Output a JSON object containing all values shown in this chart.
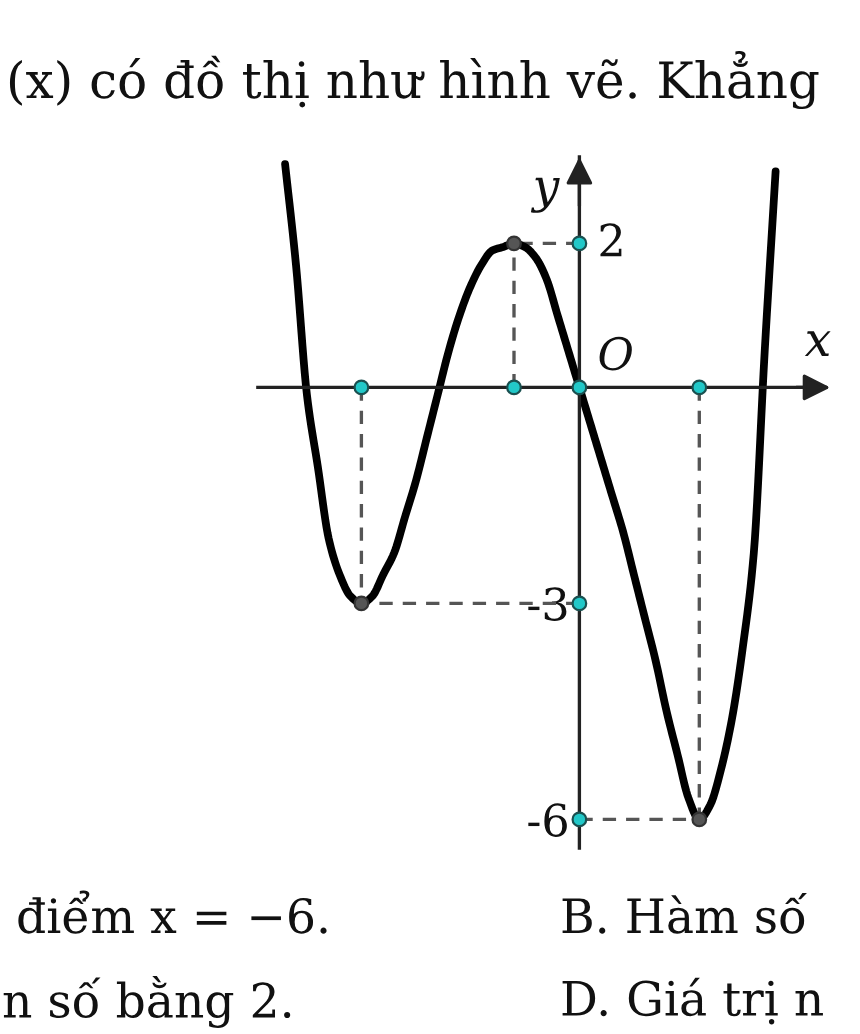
{
  "chart_data": {
    "type": "line",
    "title": "(x) có đồ thị như hình vẽ. Khẳng",
    "xlabel": "x",
    "ylabel": "y",
    "annotations": [
      "2",
      "O",
      "điểm x = −6.",
      "B. Hàm số",
      "n số bằng 2.",
      "D. Giá trị n"
    ],
    "categories": [
      null,
      null,
      null,
      null,
      null,
      null,
      null,
      null,
      null,
      null,
      null,
      null,
      null,
      null,
      null,
      null,
      null,
      null,
      null,
      null,
      null,
      null,
      null,
      null,
      null,
      null,
      null,
      null,
      null,
      null,
      null,
      null,
      null,
      null,
      null,
      null,
      null,
      null,
      null,
      null,
      null,
      null,
      null,
      null,
      null,
      null
    ],
    "series": [
      {
        "color": "#000000",
        "values": [
          3.1,
          1.7,
          -0.1,
          -1.1,
          -2.1,
          -2.6,
          -2.9,
          -3,
          -2.9,
          -2.6,
          -2.3,
          -1.8,
          -1.3,
          -0.7,
          -0.1,
          0.5,
          1.0,
          1.4,
          1.7,
          1.9,
          1.95,
          2,
          1.95,
          1.8,
          1.5,
          1.0,
          0.5,
          0,
          -0.5,
          -1.0,
          -1.5,
          -2.0,
          -2.6,
          -3.2,
          -3.8,
          -4.5,
          -5.1,
          -5.7,
          -6,
          -5.8,
          -5.3,
          -4.6,
          -3.6,
          -2.3,
          0.5,
          3.0
        ]
      },
      {
        "type": "lollipop",
        "color": "#555555",
        "line_style": "dashed",
        "marker": "circle",
        "values": [
          null,
          null,
          null,
          null,
          null,
          null,
          null,
          -3,
          null,
          null,
          null,
          null,
          null,
          null,
          null,
          null,
          null,
          null,
          null,
          null,
          null,
          2,
          null,
          null,
          null,
          null,
          null,
          null,
          null,
          null,
          null,
          null,
          null,
          null,
          null,
          null,
          null,
          null,
          -6,
          null,
          null,
          null,
          null,
          null,
          null,
          null
        ]
      },
      {
        "type": "scatter",
        "color": "#22c8c8",
        "marker": "circle",
        "values": [
          null,
          null,
          null,
          null,
          null,
          null,
          null,
          0,
          null,
          null,
          null,
          null,
          null,
          null,
          null,
          null,
          null,
          null,
          null,
          null,
          null,
          0,
          null,
          null,
          null,
          null,
          null,
          0,
          null,
          null,
          null,
          null,
          null,
          null,
          null,
          null,
          null,
          null,
          0,
          null,
          null,
          null,
          null,
          null,
          null,
          null
        ]
      },
      {
        "type": "scatter",
        "color": "#22c8c8",
        "marker": "circle",
        "values": [
          null,
          null,
          null,
          null,
          null,
          null,
          null,
          null,
          null,
          null,
          null,
          null,
          null,
          null,
          null,
          null,
          null,
          null,
          null,
          null,
          null,
          null,
          null,
          null,
          null,
          null,
          null,
          2,
          null,
          null,
          null,
          null,
          null,
          null,
          null,
          null,
          null,
          null,
          null,
          null,
          null,
          null,
          null,
          null,
          null,
          null
        ]
      },
      {
        "type": "scatter",
        "color": "#22c8c8",
        "marker": "circle",
        "values": [
          null,
          null,
          null,
          null,
          null,
          null,
          null,
          null,
          null,
          null,
          null,
          null,
          null,
          null,
          null,
          null,
          null,
          null,
          null,
          null,
          null,
          null,
          null,
          null,
          null,
          null,
          null,
          -3,
          null,
          null,
          null,
          null,
          null,
          null,
          null,
          null,
          null,
          null,
          null,
          null,
          null,
          null,
          null,
          null,
          null,
          null
        ]
      },
      {
        "type": "scatter",
        "color": "#22c8c8",
        "marker": "circle",
        "values": [
          null,
          null,
          null,
          null,
          null,
          null,
          null,
          null,
          null,
          null,
          null,
          null,
          null,
          null,
          null,
          null,
          null,
          null,
          null,
          null,
          null,
          null,
          null,
          null,
          null,
          null,
          null,
          -6,
          null,
          null,
          null,
          null,
          null,
          null,
          null,
          null,
          null,
          null,
          null,
          null,
          null,
          null,
          null,
          null,
          null,
          null
        ]
      }
    ],
    "ylim": [
      -6.4,
      3.2
    ],
    "yticks": [
      -6,
      -3
    ],
    "tick_labels": "y",
    "grid": false,
    "ref_lines": [
      {
        "axis": "y",
        "value": 2,
        "line_style": "dashed",
        "color": "#555555"
      },
      {
        "axis": "y",
        "value": -3,
        "line_style": "dashed",
        "color": "#555555"
      },
      {
        "axis": "y",
        "value": -6,
        "line_style": "dashed",
        "color": "#555555"
      }
    ]
  }
}
